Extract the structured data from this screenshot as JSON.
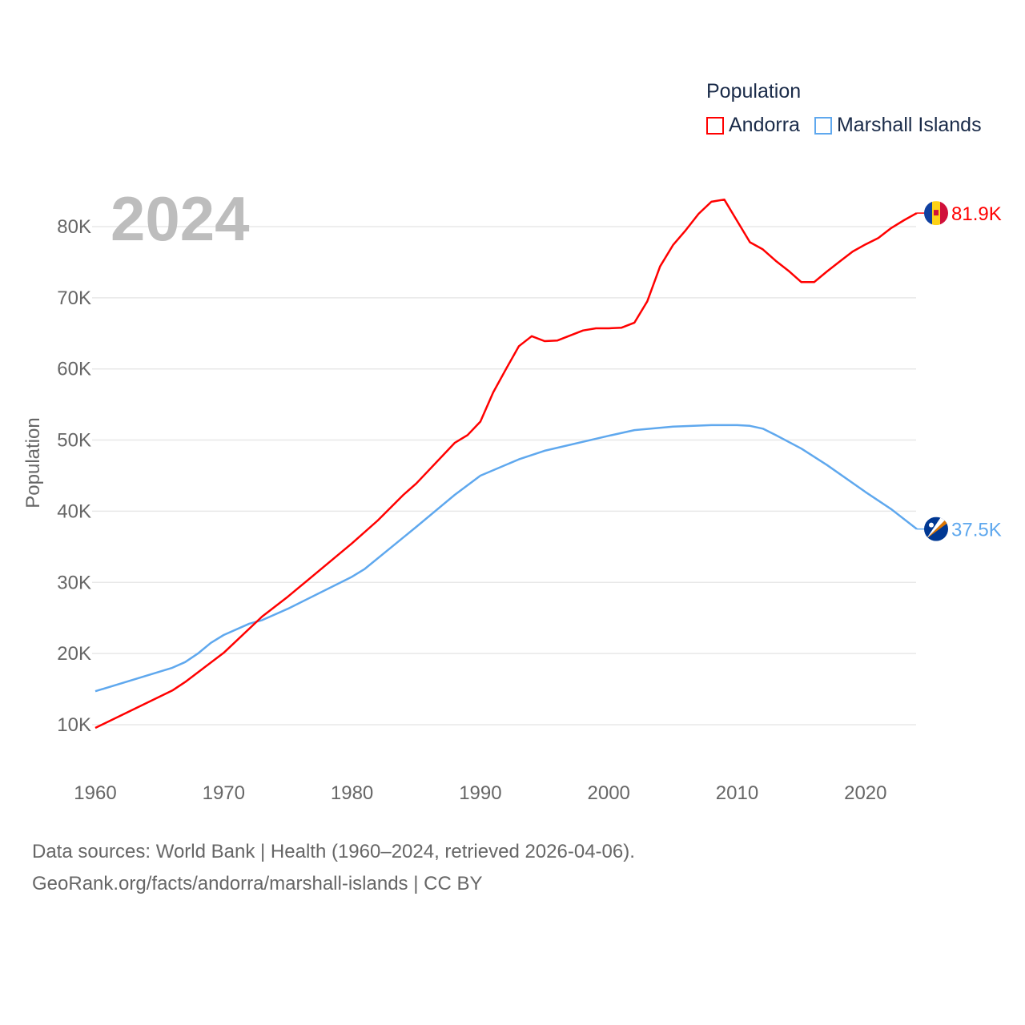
{
  "chart_data": {
    "type": "line",
    "title": "",
    "year_label": "2024",
    "xlabel": "",
    "ylabel": "Population",
    "xlim": [
      1960,
      2024
    ],
    "ylim": [
      5000,
      85000
    ],
    "x_ticks": [
      1960,
      1970,
      1980,
      1990,
      2000,
      2010,
      2020
    ],
    "x_tick_labels": [
      "1960",
      "1970",
      "1980",
      "1990",
      "2000",
      "2010",
      "2020"
    ],
    "y_ticks": [
      10000,
      20000,
      30000,
      40000,
      50000,
      60000,
      70000,
      80000
    ],
    "y_tick_labels": [
      "10K",
      "20K",
      "30K",
      "40K",
      "50K",
      "60K",
      "70K",
      "80K"
    ],
    "grid": true,
    "legend": {
      "title": "Population",
      "placement": "top-right"
    },
    "series": [
      {
        "name": "Andorra",
        "color": "#ff0000",
        "end_label": "81.9K",
        "flag": "andorra-flag",
        "x": [
          1960,
          1966,
          1967,
          1970,
          1973,
          1975,
          1980,
          1982,
          1984,
          1985,
          1988,
          1989,
          1990,
          1991,
          1992,
          1993,
          1994,
          1995,
          1996,
          1997,
          1998,
          1999,
          2000,
          2001,
          2002,
          2003,
          2004,
          2005,
          2006,
          2007,
          2008,
          2009,
          2010,
          2011,
          2012,
          2013,
          2014,
          2015,
          2016,
          2017,
          2018,
          2019,
          2020,
          2021,
          2022,
          2023,
          2024
        ],
        "y": [
          9550,
          14800,
          16000,
          20100,
          25200,
          28000,
          35500,
          38700,
          42300,
          43900,
          49600,
          50700,
          52600,
          56700,
          60000,
          63200,
          64600,
          63900,
          64000,
          64700,
          65400,
          65700,
          65700,
          65800,
          66500,
          69500,
          74400,
          77400,
          79500,
          81800,
          83500,
          83800,
          80800,
          77800,
          76800,
          75200,
          73800,
          72200,
          72200,
          73700,
          75100,
          76500,
          77500,
          78400,
          79800,
          80900,
          81900
        ]
      },
      {
        "name": "Marshall Islands",
        "color": "#5fa8ee",
        "end_label": "37.5K",
        "flag": "marshall-islands-flag",
        "x": [
          1960,
          1966,
          1967,
          1968,
          1969,
          1970,
          1972,
          1973,
          1975,
          1980,
          1981,
          1985,
          1988,
          1990,
          1993,
          1995,
          2000,
          2002,
          2005,
          2008,
          2010,
          2011,
          2012,
          2013,
          2015,
          2017,
          2020,
          2022,
          2024
        ],
        "y": [
          14700,
          18000,
          18800,
          20000,
          21500,
          22600,
          24200,
          24700,
          26300,
          30800,
          31900,
          37800,
          42300,
          45000,
          47300,
          48500,
          50600,
          51400,
          51900,
          52100,
          52100,
          52000,
          51600,
          50700,
          48800,
          46500,
          42700,
          40300,
          37500
        ]
      }
    ]
  },
  "footer": {
    "line1": "Data sources: World Bank | Health (1960–2024, retrieved 2026-04-06).",
    "line2": "GeoRank.org/facts/andorra/marshall-islands | CC BY"
  }
}
